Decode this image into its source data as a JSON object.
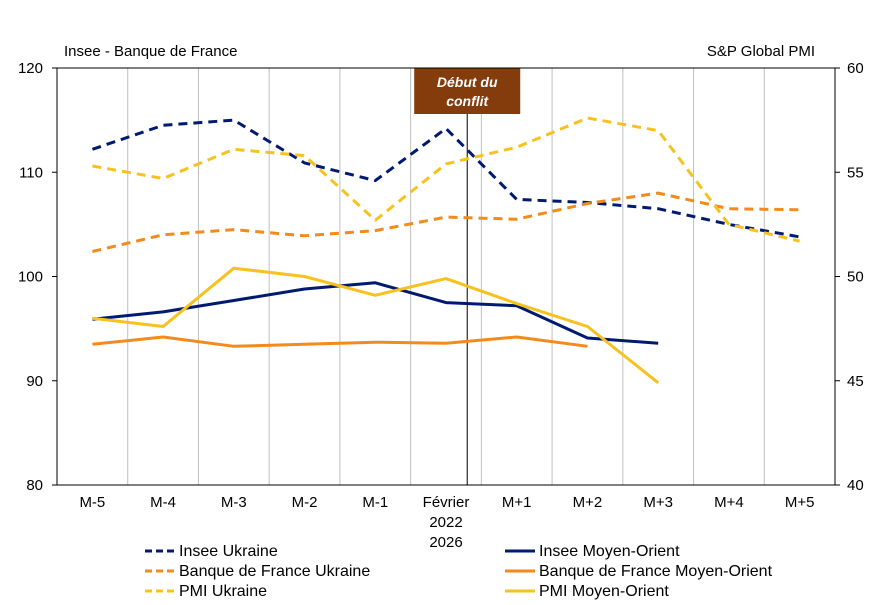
{
  "chart_data": {
    "type": "line",
    "left_axis_caption": "Insee - Banque de France",
    "right_axis_caption": "S&P Global PMI",
    "categories": [
      [
        "M-5"
      ],
      [
        "M-4"
      ],
      [
        "M-3"
      ],
      [
        "M-2"
      ],
      [
        "M-1"
      ],
      [
        "Février",
        "2022",
        "2026"
      ],
      [
        "M+1"
      ],
      [
        "M+2"
      ],
      [
        "M+3"
      ],
      [
        "M+4"
      ],
      [
        "M+5"
      ]
    ],
    "y_left": {
      "min": 80,
      "max": 120,
      "ticks": [
        80,
        90,
        100,
        110,
        120
      ]
    },
    "y_right": {
      "min": 40,
      "max": 60,
      "ticks": [
        40,
        45,
        50,
        55,
        60
      ]
    },
    "grid": "vertical",
    "annotation": {
      "label_line1": "Début du",
      "label_line2": "conflit",
      "x_index": 5.3,
      "color": "#843C0C"
    },
    "series": [
      {
        "name": "Insee Ukraine",
        "axis": "left",
        "color": "#001A70",
        "dash": true,
        "values": [
          112.2,
          114.5,
          115.0,
          110.9,
          109.2,
          114.2,
          107.4,
          107.1,
          106.5,
          105.0,
          103.8
        ]
      },
      {
        "name": "Insee Moyen-Orient",
        "axis": "left",
        "color": "#001A70",
        "dash": false,
        "values": [
          95.9,
          96.6,
          97.7,
          98.8,
          99.4,
          97.5,
          97.2,
          94.1,
          93.6,
          null,
          null
        ]
      },
      {
        "name": "Banque de France Ukraine",
        "axis": "left",
        "color": "#F28A1C",
        "dash": true,
        "values": [
          102.4,
          104.0,
          104.5,
          103.9,
          104.4,
          105.7,
          105.5,
          107.0,
          108.0,
          106.5,
          106.4
        ]
      },
      {
        "name": "Banque de France Moyen-Orient",
        "axis": "left",
        "color": "#F28A1C",
        "dash": false,
        "values": [
          93.5,
          94.2,
          93.3,
          93.5,
          93.7,
          93.6,
          94.2,
          93.3,
          null,
          null,
          null
        ]
      },
      {
        "name": "PMI Ukraine",
        "axis": "right",
        "color": "#F7C21E",
        "dash": true,
        "values": [
          55.3,
          54.7,
          56.1,
          55.8,
          52.7,
          55.4,
          56.2,
          57.6,
          57.0,
          52.5,
          51.7
        ]
      },
      {
        "name": "PMI Moyen-Orient",
        "axis": "right",
        "color": "#F7C21E",
        "dash": false,
        "values": [
          48.0,
          47.6,
          50.4,
          50.0,
          49.1,
          49.9,
          48.7,
          47.6,
          44.9,
          null,
          null
        ]
      }
    ],
    "legend_placement": "bottom"
  }
}
